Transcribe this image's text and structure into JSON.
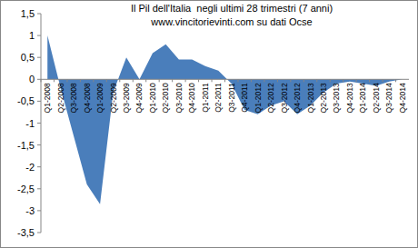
{
  "chart_data": {
    "type": "area",
    "title": "Il Pil dell'Italia  negli ultimi 28 trimestri (7 anni)",
    "subtitle": "www.vincitorievinti.com su dati Ocse",
    "categories": [
      "Q1-2008",
      "Q2-2008",
      "Q3-2008",
      "Q4-2008",
      "Q1-2009",
      "Q2-2009",
      "Q3-2009",
      "Q4-2009",
      "Q1-2010",
      "Q2-2010",
      "Q3-2010",
      "Q4-2010",
      "Q1-2011",
      "Q2-2011",
      "Q3-2011",
      "Q4-2011",
      "Q1-2012",
      "Q2-2012",
      "Q3-2012",
      "Q4-2012",
      "Q1-2013",
      "Q2-2013",
      "Q3-2013",
      "Q4-2013",
      "Q1-2014",
      "Q2-2014",
      "Q3-2014",
      "Q4-2014"
    ],
    "values": [
      1.0,
      -0.2,
      -1.3,
      -2.4,
      -2.85,
      -0.3,
      0.5,
      0.0,
      0.6,
      0.8,
      0.45,
      0.45,
      0.3,
      0.2,
      -0.1,
      -0.7,
      -0.8,
      -0.6,
      -0.5,
      -0.8,
      -0.6,
      -0.3,
      -0.1,
      -0.05,
      -0.1,
      -0.15,
      -0.05,
      0.0
    ],
    "color": "#4a7ebb",
    "ylim": [
      -3.5,
      1.5
    ],
    "yticks": [
      {
        "value": 1.5,
        "label": "1,5"
      },
      1,
      {
        "value": 0.5,
        "label": "0,5"
      },
      0,
      {
        "value": -0.5,
        "label": "-0,5"
      },
      -1,
      {
        "value": -1.5,
        "label": "-1,5"
      },
      -2,
      {
        "value": -2.5,
        "label": "-2,5"
      },
      -3,
      {
        "value": -3.5,
        "label": "-3,5"
      }
    ],
    "grid": false
  }
}
